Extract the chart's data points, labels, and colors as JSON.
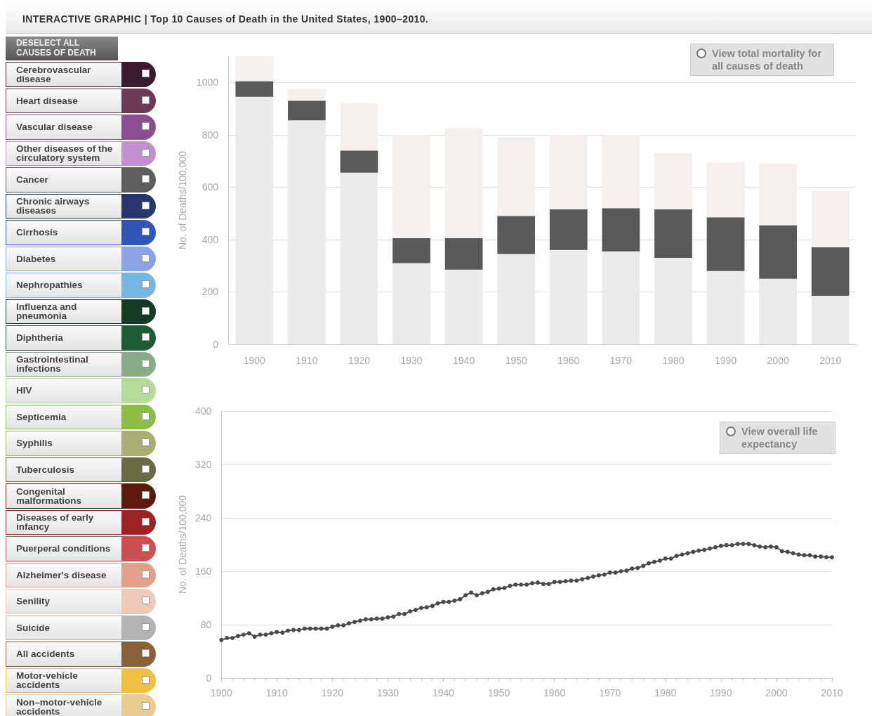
{
  "chart_data": [
    {
      "type": "other",
      "title": "INTERACTIVE GRAPHIC | Top 10 Causes of Death in the United States, 1900–2010.",
      "annotations": [
        "DESELECT ALL CAUSES OF DEATH"
      ],
      "categories": [
        "Cerebrovascular disease",
        "Heart disease",
        "Vascular disease",
        "Other diseases of the circulatory system",
        "Cancer",
        "Chronic airways diseases",
        "Cirrhosis",
        "Diabetes",
        "Nephropathies",
        "Influenza and pneumonia",
        "Diphtheria",
        "Gastrointestinal infections",
        "HIV",
        "Septicemia",
        "Syphilis",
        "Tuberculosis",
        "Congenital malformations",
        "Diseases of early infancy",
        "Puerperal conditions",
        "Alzheimer's disease",
        "Senility",
        "Suicide",
        "All accidents",
        "Motor-vehicle accidents",
        "Non–motor-vehicle accidents"
      ],
      "colors": [
        "#3b1a2e",
        "#6b3a55",
        "#8a4f8f",
        "#c48fcf",
        "#5e5e5e",
        "#26386b",
        "#2f56b8",
        "#8aa3e6",
        "#76b6e3",
        "#123a24",
        "#1f5c35",
        "#86ad86",
        "#b5dc9a",
        "#8dbd45",
        "#a7ad73",
        "#6a6b45",
        "#5c1a0e",
        "#9e2424",
        "#cc5050",
        "#e0a08a",
        "#f0c8b8",
        "#b3b3b3",
        "#8a6238",
        "#f0c040",
        "#e8cc90"
      ]
    },
    {
      "type": "bar",
      "stacked": true,
      "ylabel": "No. of Deaths/100,000",
      "annotations": [
        "View total mortality for all causes of death"
      ],
      "categories": [
        "1900",
        "1910",
        "1920",
        "1930",
        "1940",
        "1950",
        "1960",
        "1970",
        "1980",
        "1990",
        "2000",
        "2010"
      ],
      "series": [
        {
          "color": "#ecebeb",
          "values": [
            945,
            855,
            655,
            310,
            285,
            345,
            360,
            355,
            330,
            280,
            250,
            185
          ]
        },
        {
          "color": "#595959",
          "values": [
            60,
            75,
            85,
            95,
            120,
            145,
            155,
            165,
            185,
            205,
            205,
            185
          ]
        },
        {
          "color": "#f3f0ee",
          "values": [
            95,
            45,
            180,
            395,
            420,
            300,
            285,
            280,
            215,
            210,
            235,
            215
          ]
        }
      ],
      "ylim": [
        0,
        1100
      ],
      "yticks": [
        0,
        200,
        400,
        600,
        800,
        1000
      ],
      "grid": "y"
    },
    {
      "type": "line",
      "ylabel": "No. of Deaths/100,000",
      "annotations": [
        "View overall life expectancy"
      ],
      "marker": "circle",
      "grid": "y",
      "x": [
        1900,
        1901,
        1902,
        1903,
        1904,
        1905,
        1906,
        1907,
        1908,
        1909,
        1910,
        1911,
        1912,
        1913,
        1914,
        1915,
        1916,
        1917,
        1918,
        1919,
        1920,
        1921,
        1922,
        1923,
        1924,
        1925,
        1926,
        1927,
        1928,
        1929,
        1930,
        1931,
        1932,
        1933,
        1934,
        1935,
        1936,
        1937,
        1938,
        1939,
        1940,
        1941,
        1942,
        1943,
        1944,
        1945,
        1946,
        1947,
        1948,
        1949,
        1950,
        1951,
        1952,
        1953,
        1954,
        1955,
        1956,
        1957,
        1958,
        1959,
        1960,
        1961,
        1962,
        1963,
        1964,
        1965,
        1966,
        1967,
        1968,
        1969,
        1970,
        1971,
        1972,
        1973,
        1974,
        1975,
        1976,
        1977,
        1978,
        1979,
        1980,
        1981,
        1982,
        1983,
        1984,
        1985,
        1986,
        1987,
        1988,
        1989,
        1990,
        1991,
        1992,
        1993,
        1994,
        1995,
        1996,
        1997,
        1998,
        1999,
        2000,
        2001,
        2002,
        2003,
        2004,
        2005,
        2006,
        2007,
        2008,
        2009,
        2010
      ],
      "series": [
        {
          "color": "#4a4a4a",
          "values": [
            57,
            60,
            60,
            63,
            65,
            67,
            62,
            65,
            65,
            67,
            69,
            68,
            71,
            72,
            72,
            74,
            74,
            74,
            74,
            74,
            77,
            79,
            79,
            82,
            84,
            86,
            88,
            88,
            89,
            89,
            91,
            92,
            96,
            96,
            100,
            102,
            105,
            106,
            108,
            112,
            114,
            114,
            116,
            118,
            124,
            128,
            124,
            127,
            129,
            133,
            134,
            135,
            138,
            140,
            140,
            140,
            142,
            143,
            141,
            141,
            144,
            144,
            145,
            146,
            146,
            148,
            150,
            152,
            154,
            155,
            158,
            158,
            160,
            161,
            164,
            165,
            168,
            172,
            174,
            176,
            179,
            179,
            183,
            185,
            187,
            189,
            191,
            192,
            194,
            196,
            198,
            199,
            199,
            201,
            201,
            201,
            199,
            197,
            196,
            197,
            196,
            190,
            189,
            187,
            185,
            184,
            184,
            182,
            182,
            181,
            181
          ]
        }
      ],
      "xlim": [
        1900,
        2010
      ],
      "xticks": [
        1900,
        1910,
        1920,
        1930,
        1940,
        1950,
        1960,
        1970,
        1980,
        1990,
        2000,
        2010
      ],
      "ylim": [
        0,
        400
      ],
      "yticks": [
        0,
        80,
        160,
        240,
        320,
        400
      ]
    }
  ]
}
